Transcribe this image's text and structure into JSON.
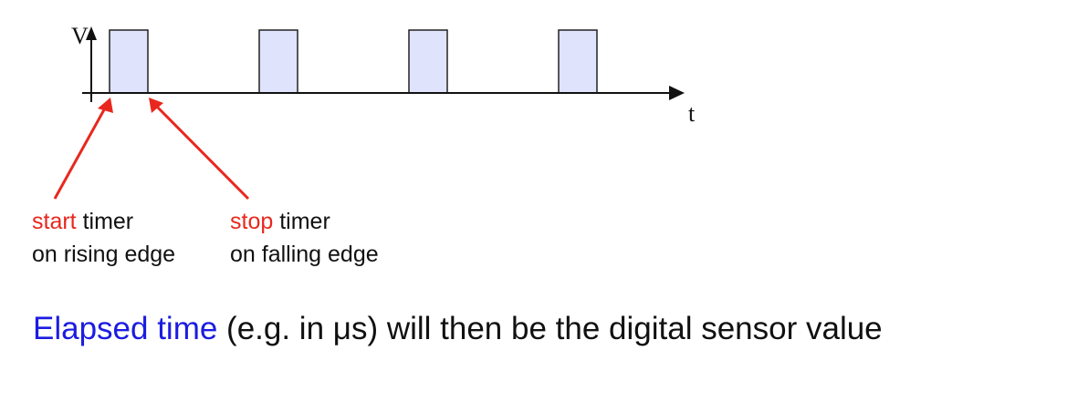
{
  "axis": {
    "y_label": "V",
    "x_label": "t"
  },
  "pulses": {
    "count": 4,
    "fill_color": "#dfe3fb",
    "stroke_color": "#222222"
  },
  "annotations": {
    "arrow_color": "#e8281e",
    "start": {
      "keyword": "start",
      "line1_rest": " timer",
      "line2": "on rising edge"
    },
    "stop": {
      "keyword": "stop",
      "line1_rest": " timer",
      "line2": "on falling edge"
    }
  },
  "summary": {
    "highlight": "Elapsed time",
    "highlight_color": "#1c1ce0",
    "rest": " (e.g. in μs) will then be the digital sensor value"
  }
}
